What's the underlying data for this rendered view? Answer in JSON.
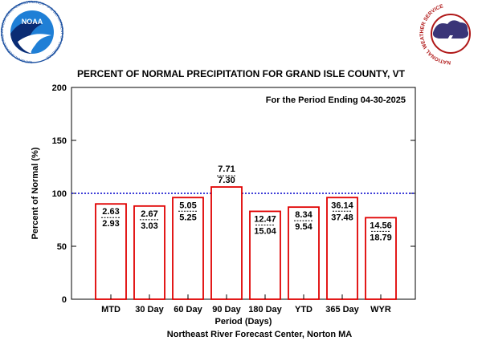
{
  "chart_data": {
    "type": "bar",
    "title": "PERCENT OF NORMAL PRECIPITATION FOR GRAND ISLE COUNTY, VT",
    "subtitle": "For the Period Ending 04-30-2025",
    "xlabel": "Period (Days)",
    "ylabel": "Percent of Normal (%)",
    "footer": "Northeast River Forecast Center, Norton MA",
    "ylim": [
      0,
      200
    ],
    "yticks": [
      "0",
      "50",
      "100",
      "150",
      "200"
    ],
    "reference_line": 100,
    "categories": [
      "MTD",
      "30 Day",
      "60 Day",
      "90 Day",
      "180 Day",
      "YTD",
      "365 Day",
      "WYR"
    ],
    "values": [
      90,
      88,
      96,
      106,
      83,
      87,
      96,
      77
    ],
    "observed": [
      "2.63",
      "2.67",
      "5.05",
      "7.71",
      "12.47",
      "8.34",
      "36.14",
      "14.56"
    ],
    "normal": [
      "2.93",
      "3.03",
      "5.25",
      "7.30",
      "15.04",
      "9.54",
      "37.48",
      "18.79"
    ],
    "colors": {
      "bar": "#e00000",
      "reference": "#0000cc"
    },
    "grid": false
  },
  "logos": {
    "noaa": "NOAA",
    "noaa_ring": "NATIONAL OCEANIC AND ATMOSPHERIC ADMINISTRATION · U.S. DEPARTMENT OF COMMERCE",
    "nws_ring": "NATIONAL WEATHER SERVICE"
  }
}
